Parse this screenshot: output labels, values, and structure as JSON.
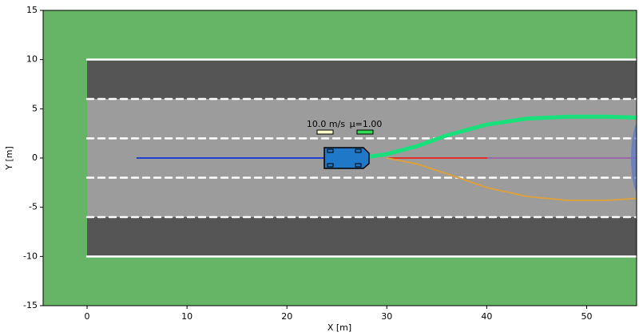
{
  "chart_data": {
    "type": "line",
    "xlabel": "X [m]",
    "ylabel": "Y [m]",
    "xlim": [
      -4.4,
      55
    ],
    "ylim": [
      -15,
      15
    ],
    "xticks": [
      0,
      10,
      20,
      30,
      40,
      50
    ],
    "yticks": [
      -15,
      -10,
      -5,
      0,
      5,
      10,
      15
    ],
    "background": "#66b466",
    "annotations": [
      "10.0 m/s",
      "μ=1.00"
    ],
    "series": [
      {
        "color": "#ffffff",
        "style": "solid",
        "x": [
          0,
          55
        ],
        "values": [
          10,
          10
        ]
      },
      {
        "color": "#ffffff",
        "style": "solid",
        "x": [
          0,
          55
        ],
        "values": [
          -10,
          -10
        ]
      },
      {
        "color": "#ffffff",
        "style": "dashed",
        "x": [
          0,
          55
        ],
        "values": [
          6,
          6
        ]
      },
      {
        "color": "#ffffff",
        "style": "dashed",
        "x": [
          0,
          55
        ],
        "values": [
          -6,
          -6
        ]
      },
      {
        "color": "#ffffff",
        "style": "dashed",
        "x": [
          0,
          55
        ],
        "values": [
          2,
          2
        ]
      },
      {
        "color": "#ffffff",
        "style": "dashed",
        "x": [
          0,
          55
        ],
        "values": [
          -2,
          -2
        ]
      },
      {
        "color": "#1f3fd0",
        "style": "thin",
        "x": [
          5,
          24
        ],
        "values": [
          0,
          0
        ]
      },
      {
        "color": "#9a6aa8",
        "style": "thin",
        "x": [
          40,
          55
        ],
        "values": [
          0,
          0
        ]
      },
      {
        "color": "#e0302a",
        "style": "thin",
        "x": [
          30,
          40
        ],
        "values": [
          0,
          0
        ]
      },
      {
        "color": "#d9a040",
        "style": "thin",
        "x": [
          30,
          33,
          36,
          40,
          44,
          48,
          52,
          55
        ],
        "values": [
          0,
          -0.6,
          -1.6,
          -3,
          -3.9,
          -4.3,
          -4.3,
          -4.1
        ]
      },
      {
        "color": "#19e07a",
        "style": "thick",
        "x": [
          25.5,
          28,
          30,
          33,
          36,
          40,
          44,
          48,
          52,
          55
        ],
        "values": [
          0,
          0.1,
          0.4,
          1.2,
          2.3,
          3.4,
          4.0,
          4.2,
          4.2,
          4.1
        ]
      }
    ]
  }
}
